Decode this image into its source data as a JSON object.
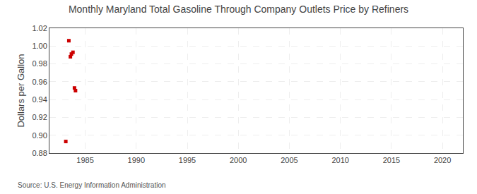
{
  "chart_data": {
    "type": "scatter",
    "title": "Monthly Maryland Total Gasoline Through Company Outlets Price by Refiners",
    "ylabel": "Dollars per Gallon",
    "source": "Source: U.S. Energy Information Administration",
    "x": [
      1983.1,
      1983.4,
      1983.55,
      1983.65,
      1983.8,
      1983.95,
      1984.05
    ],
    "values": [
      0.893,
      1.006,
      0.988,
      0.991,
      0.993,
      0.953,
      0.95
    ],
    "color": "#cc0000",
    "marker": "square",
    "xlim": [
      1981.5,
      2022
    ],
    "ylim": [
      0.88,
      1.02
    ],
    "xticks": [
      1985,
      1990,
      1995,
      2000,
      2005,
      2010,
      2015,
      2020
    ],
    "yticks": [
      0.88,
      {
        "value": 0.9,
        "label": "0.90"
      },
      0.92,
      0.94,
      0.96,
      0.98,
      {
        "value": 1.0,
        "label": "1.00"
      },
      1.02
    ],
    "grid": true
  }
}
